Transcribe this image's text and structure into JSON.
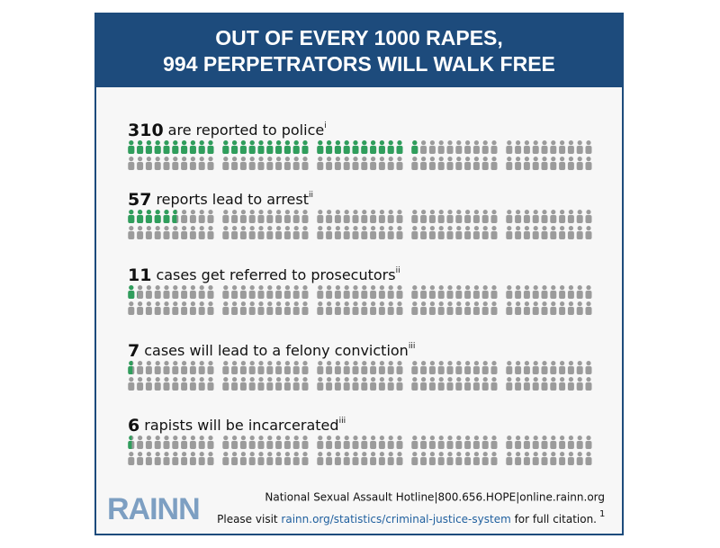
{
  "chart_data": {
    "type": "pictogram",
    "title": [
      "OUT OF EVERY 1000 RAPES,",
      "994 PERPETRATORS WILL WALK FREE"
    ],
    "total": 1000,
    "categories": [
      "are reported to police",
      "reports lead to arrest",
      "cases get referred to prosecutors",
      "cases will lead to a felony conviction",
      "rapists will be incarcerated"
    ],
    "notes": [
      "i",
      "ii",
      "ii",
      "iii",
      "iii"
    ],
    "values": [
      310,
      57,
      11,
      7,
      6
    ],
    "color": "#2f9e5c",
    "base_color": "#9b9b9b"
  },
  "footer": {
    "logo": "RAINN",
    "hotline": "National Sexual Assault Hotline|800.656.HOPE|online.rainn.org",
    "citation": [
      "Please visit ",
      "rainn.org/statistics/criminal-justice-system",
      " for full citation."
    ],
    "citation_note": "1"
  }
}
